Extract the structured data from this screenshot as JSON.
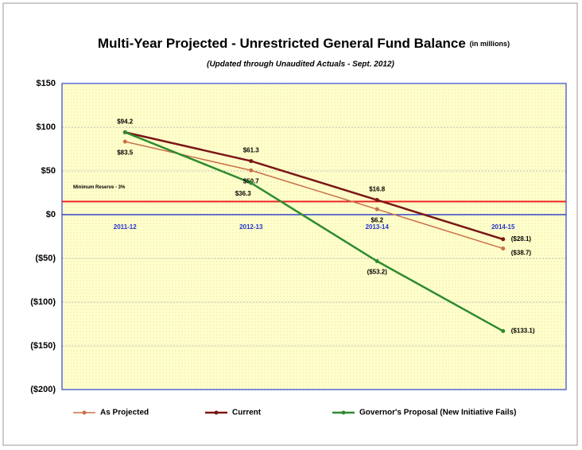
{
  "chart_data": {
    "type": "line",
    "title": "Multi-Year Projected - Unrestricted General Fund Balance",
    "title_note": "(in millions)",
    "subtitle": "(Updated through Unaudited Actuals - Sept. 2012)",
    "categories": [
      "2011-12",
      "2012-13",
      "2013-14",
      "2014-15"
    ],
    "series": [
      {
        "name": "As Projected",
        "color": "#c8704a",
        "values": [
          83.5,
          50.7,
          6.2,
          -38.7
        ],
        "value_labels": [
          "$83.5",
          "$50.7",
          "$6.2",
          "($38.7)"
        ]
      },
      {
        "name": "Current",
        "color": "#7a1616",
        "values": [
          94.2,
          61.3,
          16.8,
          -28.1
        ],
        "value_labels": [
          "$94.2",
          "$61.3",
          "$16.8",
          "($28.1)"
        ]
      },
      {
        "name": "Governor's Proposal (New Initiative Fails)",
        "color": "#2e8b2e",
        "values": [
          94.2,
          36.3,
          -53.2,
          -133.1
        ],
        "value_labels": [
          null,
          "$36.3",
          "($53.2)",
          "($133.1)"
        ]
      }
    ],
    "ylim": [
      -200,
      150
    ],
    "yticks": [
      {
        "value": -200,
        "label": "($200)"
      },
      {
        "value": -150,
        "label": "($150)"
      },
      {
        "value": -100,
        "label": "($100)"
      },
      {
        "value": -50,
        "label": "($50)"
      },
      {
        "value": 0,
        "label": "$0"
      },
      {
        "value": 50,
        "label": "$50"
      },
      {
        "value": 100,
        "label": "$100"
      },
      {
        "value": 150,
        "label": "$150"
      }
    ],
    "grid": true,
    "reference_line": {
      "label": "Minimum Reserve - 3%",
      "value": 15,
      "color": "#ee2222"
    },
    "legend": "bottom"
  }
}
